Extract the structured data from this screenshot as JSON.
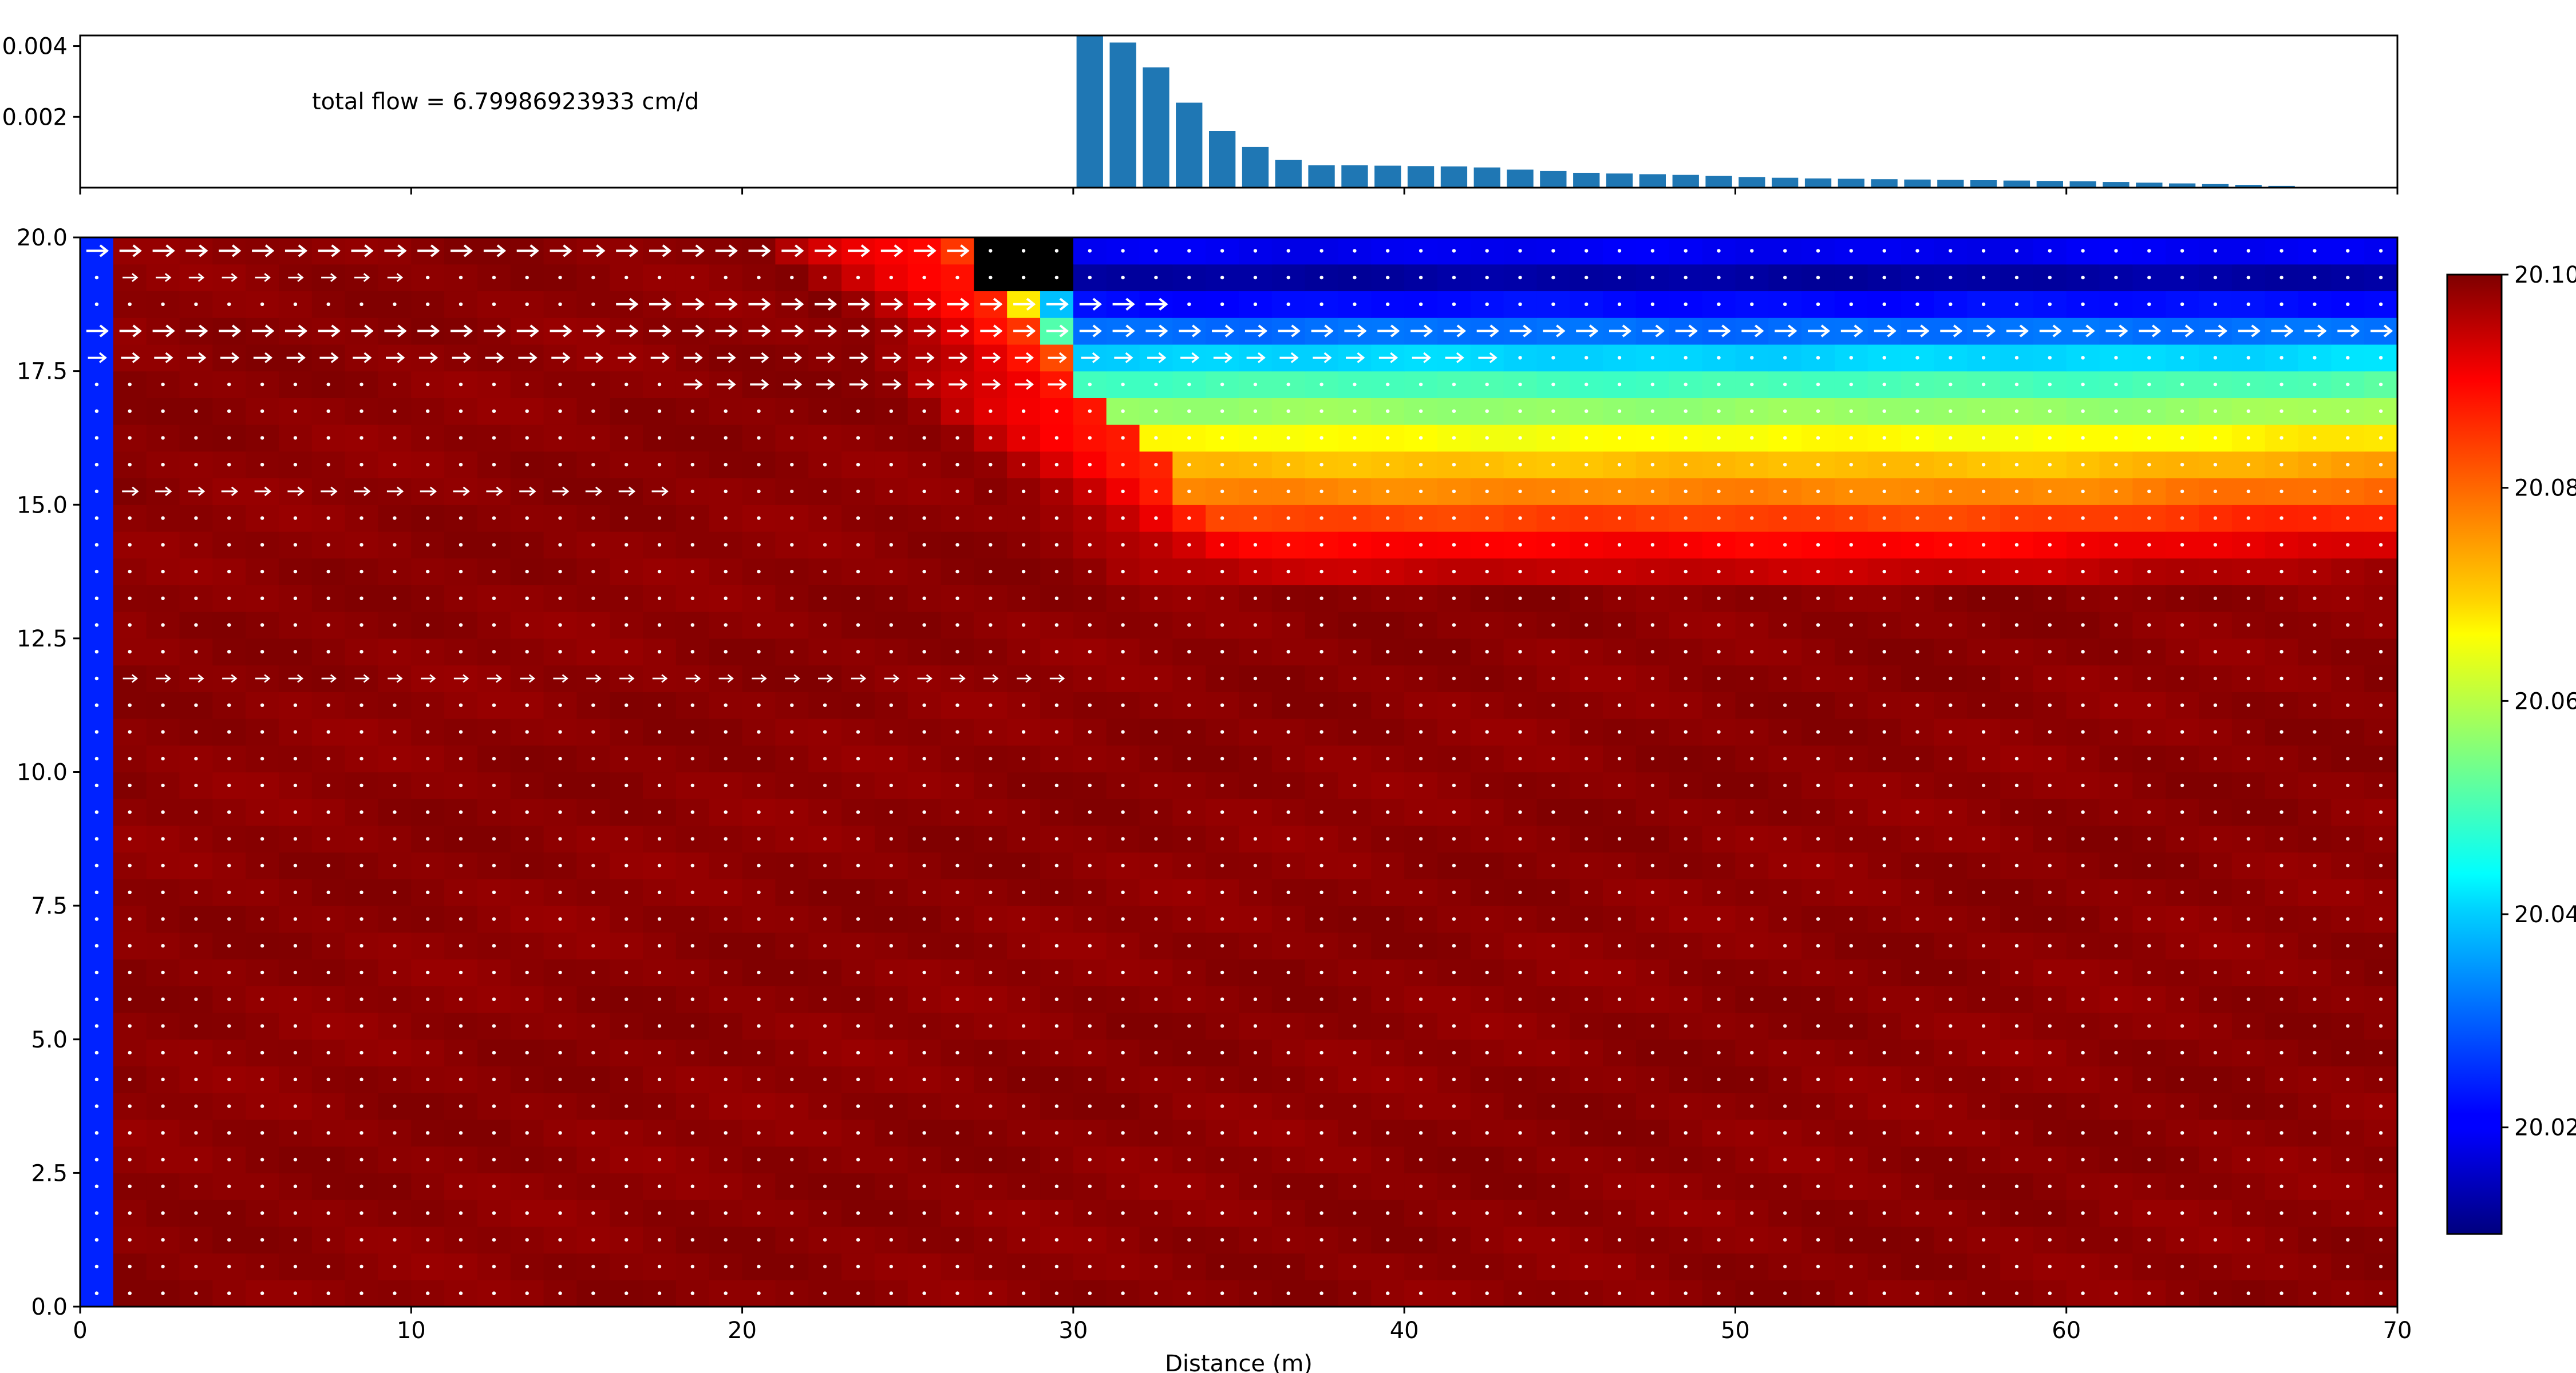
{
  "figure": {
    "annotation": "total flow = 6.79986923933 cm/d",
    "xlabel": "Distance (m)"
  },
  "chart_data": [
    {
      "type": "bar",
      "name": "flux-profile",
      "title": "",
      "xlabel": "",
      "ylabel": "",
      "xlim": [
        0,
        70
      ],
      "ylim": [
        0,
        0.0043
      ],
      "yticks": [
        0.002,
        0.004
      ],
      "ytick_labels": [
        "0.002",
        "0.004"
      ],
      "xticks": [
        0,
        10,
        20,
        30,
        40,
        50,
        60,
        70
      ],
      "bar_color": "#1f77b4",
      "bar_width": 0.8,
      "x": [
        30.5,
        31.5,
        32.5,
        33.5,
        34.5,
        35.5,
        36.5,
        37.5,
        38.5,
        39.5,
        40.5,
        41.5,
        42.5,
        43.5,
        44.5,
        45.5,
        46.5,
        47.5,
        48.5,
        49.5,
        50.5,
        51.5,
        52.5,
        53.5,
        54.5,
        55.5,
        56.5,
        57.5,
        58.5,
        59.5,
        60.5,
        61.5,
        62.5,
        63.5,
        64.5,
        65.5,
        66.5,
        67.5,
        68.5
      ],
      "values": [
        0.0043,
        0.0041,
        0.0034,
        0.0024,
        0.0016,
        0.00115,
        0.00078,
        0.00063,
        0.00063,
        0.00062,
        0.00061,
        0.0006,
        0.00057,
        0.00051,
        0.00047,
        0.00042,
        0.0004,
        0.00038,
        0.00036,
        0.00033,
        0.0003,
        0.00028,
        0.00026,
        0.00025,
        0.00024,
        0.00023,
        0.00022,
        0.00021,
        0.0002,
        0.00019,
        0.00018,
        0.00016,
        0.00014,
        0.00012,
        0.0001,
        8e-05,
        5e-05,
        2e-05,
        1e-05
      ]
    },
    {
      "type": "heatmap",
      "name": "salinity-cross-section",
      "title": "",
      "xlabel": "Distance (m)",
      "ylabel": "",
      "xlim": [
        0,
        70
      ],
      "ylim": [
        0,
        20
      ],
      "xticks": [
        0,
        10,
        20,
        30,
        40,
        50,
        60,
        70
      ],
      "xtick_labels": [
        "0",
        "10",
        "20",
        "30",
        "40",
        "50",
        "60",
        "70"
      ],
      "yticks": [
        0,
        2.5,
        5,
        7.5,
        10,
        12.5,
        15,
        17.5,
        20
      ],
      "ytick_labels": [
        "0.0",
        "2.5",
        "5.0",
        "7.5",
        "10.0",
        "12.5",
        "15.0",
        "17.5",
        "20.0"
      ],
      "colormap": "jet",
      "grid_ncols": 70,
      "grid_nrows": 40,
      "left_boundary": {
        "x": [
          0,
          1
        ],
        "value": 20.02,
        "color": "#0022ff"
      },
      "inactive_cells": {
        "x": [
          27,
          30
        ],
        "y": [
          19,
          20
        ],
        "color": "#000000"
      },
      "fresh_lens": {
        "x_start": 30,
        "x_end": 70,
        "rows_top_down": [
          20.02,
          20.013,
          20.022,
          20.031,
          20.04,
          20.05,
          20.057,
          20.066,
          20.072,
          20.077,
          20.083,
          20.089,
          20.094
        ]
      },
      "plume_front": {
        "y_top": 20,
        "y_bottom": 13.5,
        "x_at_top": 26,
        "x_at_bottom": 36,
        "outer_band_width_m": 6
      },
      "background_value": 20.1,
      "quiver": {
        "color": "#ffffff",
        "streams": [
          {
            "y": 19.75,
            "x_from": 0.5,
            "x_to": 27,
            "strength": 1.0
          },
          {
            "y": 19.25,
            "x_from": 1.5,
            "x_to": 10,
            "strength": 0.4
          },
          {
            "y": 18.75,
            "x_from": 16,
            "x_to": 33,
            "strength": 1.0
          },
          {
            "y": 18.25,
            "x_from": 0.5,
            "x_to": 70,
            "strength": 1.0
          },
          {
            "y": 17.75,
            "x_from": 0.5,
            "x_to": 43,
            "strength": 0.7
          },
          {
            "y": 17.25,
            "x_from": 18,
            "x_to": 30,
            "strength": 0.7
          },
          {
            "y": 15.25,
            "x_from": 1.5,
            "x_to": 18,
            "strength": 0.5
          },
          {
            "y": 11.75,
            "x_from": 1.5,
            "x_to": 30,
            "strength": 0.35
          }
        ]
      },
      "colorbar": {
        "min": 20.01,
        "max": 20.1,
        "ticks": [
          20.02,
          20.04,
          20.06,
          20.08,
          20.1
        ],
        "tick_labels": [
          "20.02",
          "20.04",
          "20.06",
          "20.08",
          "20.10"
        ]
      }
    }
  ]
}
